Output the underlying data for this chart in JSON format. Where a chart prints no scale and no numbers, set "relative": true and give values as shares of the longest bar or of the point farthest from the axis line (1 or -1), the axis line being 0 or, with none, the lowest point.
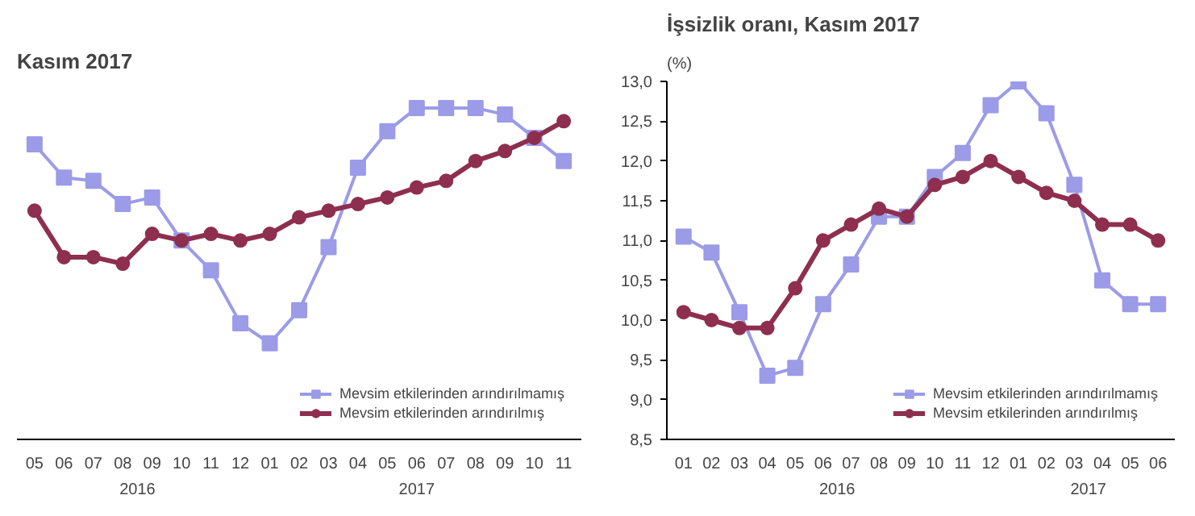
{
  "chart_data": [
    {
      "type": "line",
      "title": "Kasım 2017",
      "relative": true,
      "legend": "bottom right",
      "grid": false,
      "categories": [
        "05",
        "06",
        "07",
        "08",
        "09",
        "10",
        "11",
        "12",
        "01",
        "02",
        "03",
        "04",
        "05",
        "06",
        "07",
        "08",
        "09",
        "10",
        "11"
      ],
      "annotations": [
        "2016",
        "2017"
      ],
      "series": [
        {
          "name": "Mevsim etkilerinden arındırılmamış",
          "color": "#9b9be8",
          "marker": "square",
          "values": [
            0.89,
            0.79,
            0.78,
            0.71,
            0.73,
            0.6,
            0.51,
            0.35,
            0.29,
            0.39,
            0.58,
            0.82,
            0.93,
            1,
            1,
            1,
            0.98,
            0.91,
            0.84
          ]
        },
        {
          "name": "Mevsim etkilerinden arındırılmış",
          "color": "#8e2f4f",
          "marker": "circle",
          "values": [
            0.69,
            0.55,
            0.55,
            0.53,
            0.62,
            0.6,
            0.62,
            0.6,
            0.62,
            0.67,
            0.69,
            0.71,
            0.73,
            0.76,
            0.78,
            0.84,
            0.87,
            0.91,
            0.96
          ]
        }
      ]
    },
    {
      "type": "line",
      "title": "İşsizlik oranı, Kasım 2017",
      "ylabel": "(%)",
      "legend": "bottom right",
      "grid": false,
      "categories": [
        "01",
        "02",
        "03",
        "04",
        "05",
        "06",
        "07",
        "08",
        "09",
        "10",
        "11",
        "12",
        "01",
        "02",
        "03",
        "04",
        "05",
        "06"
      ],
      "annotations": [
        "2016",
        "2017"
      ],
      "ylim": [
        8.5,
        13.0
      ],
      "yticks": [
        {
          "value": 8.5,
          "label": "8,5"
        },
        {
          "value": 9.0,
          "label": "9,0"
        },
        {
          "value": 9.5,
          "label": "9,5"
        },
        {
          "value": 10.0,
          "label": "10,0"
        },
        {
          "value": 10.5,
          "label": "10,5"
        },
        {
          "value": 11.0,
          "label": "11,0"
        },
        {
          "value": 11.5,
          "label": "11,5"
        },
        {
          "value": 12.0,
          "label": "12,0"
        },
        {
          "value": 12.5,
          "label": "12,5"
        },
        {
          "value": 13.0,
          "label": "13,0"
        }
      ],
      "series": [
        {
          "name": "Mevsim etkilerinden arındırılmamış",
          "color": "#9b9be8",
          "marker": "square",
          "values": [
            11.05,
            10.85,
            10.1,
            9.3,
            9.4,
            10.2,
            10.7,
            11.3,
            11.3,
            11.8,
            12.1,
            12.7,
            13.0,
            12.6,
            11.7,
            10.5,
            10.2,
            10.2
          ]
        },
        {
          "name": "Mevsim etkilerinden arındırılmış",
          "color": "#8e2f4f",
          "marker": "circle",
          "values": [
            10.1,
            10.0,
            9.9,
            9.9,
            10.4,
            11.0,
            11.2,
            11.4,
            11.3,
            11.7,
            11.8,
            12.0,
            11.8,
            11.6,
            11.5,
            11.2,
            11.2,
            11.0
          ]
        }
      ]
    }
  ]
}
